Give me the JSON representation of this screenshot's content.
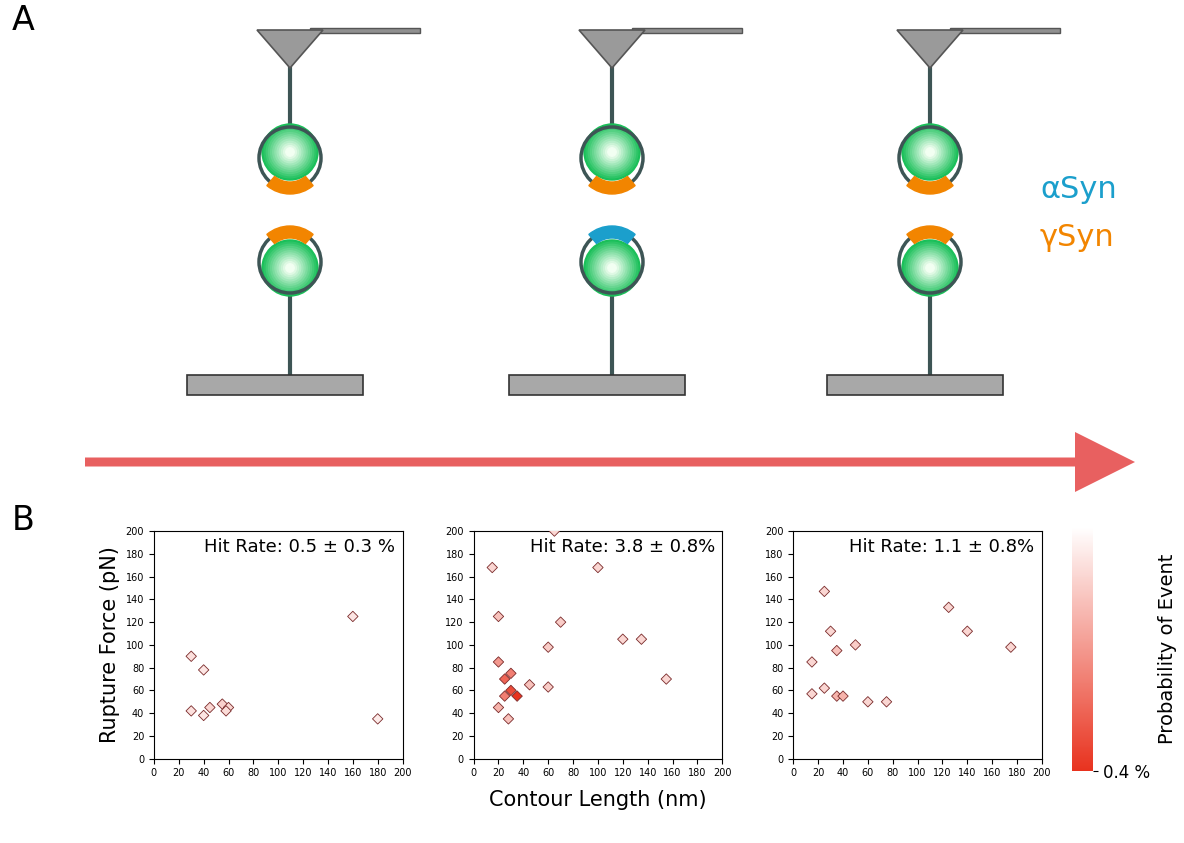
{
  "chart_data": [
    {
      "type": "scatter",
      "title": "Hit Rate: 0.5 ± 0.3 %",
      "y_label": "Rupture Force (pN)",
      "x": [
        30,
        40,
        30,
        45,
        40,
        55,
        60,
        58,
        160,
        180
      ],
      "values": [
        90,
        78,
        42,
        45,
        38,
        48,
        45,
        42,
        125,
        35
      ],
      "probability": [
        0.06,
        0.05,
        0.06,
        0.08,
        0.05,
        0.09,
        0.08,
        0.07,
        0.05,
        0.04
      ],
      "marker": "diamond",
      "xlim": [
        0,
        200
      ],
      "ylim": [
        0,
        200
      ],
      "xticks": [
        0,
        20,
        40,
        60,
        80,
        100,
        120,
        140,
        160,
        180,
        200
      ],
      "yticks": [
        0,
        20,
        40,
        60,
        80,
        100,
        120,
        140,
        160,
        180,
        200
      ]
    },
    {
      "type": "scatter",
      "title": "Hit Rate: 3.8 ± 0.8%",
      "x_label": "Contour Length (nm)",
      "x": [
        15,
        65,
        100,
        20,
        70,
        120,
        135,
        155,
        60,
        60,
        20,
        25,
        25,
        30,
        35,
        28,
        45,
        20,
        30
      ],
      "values": [
        168,
        200,
        168,
        125,
        120,
        105,
        105,
        70,
        98,
        63,
        85,
        70,
        55,
        60,
        55,
        35,
        65,
        45,
        75
      ],
      "probability": [
        0.08,
        0.08,
        0.08,
        0.12,
        0.1,
        0.08,
        0.08,
        0.08,
        0.1,
        0.1,
        0.2,
        0.3,
        0.25,
        0.35,
        0.4,
        0.12,
        0.12,
        0.15,
        0.25
      ],
      "marker": "diamond",
      "xlim": [
        0,
        200
      ],
      "ylim": [
        0,
        200
      ],
      "xticks": [
        0,
        20,
        40,
        60,
        80,
        100,
        120,
        140,
        160,
        180,
        200
      ],
      "yticks": [
        0,
        20,
        40,
        60,
        80,
        100,
        120,
        140,
        160,
        180,
        200
      ]
    },
    {
      "type": "scatter",
      "title": "Hit Rate: 1.1 ± 0.8%",
      "x": [
        25,
        30,
        15,
        35,
        15,
        25,
        35,
        40,
        50,
        60,
        75,
        125,
        140,
        175
      ],
      "values": [
        147,
        112,
        85,
        95,
        57,
        62,
        55,
        55,
        100,
        50,
        50,
        133,
        112,
        98
      ],
      "probability": [
        0.08,
        0.08,
        0.08,
        0.12,
        0.08,
        0.08,
        0.15,
        0.15,
        0.1,
        0.08,
        0.08,
        0.08,
        0.08,
        0.08
      ],
      "marker": "diamond",
      "xlim": [
        0,
        200
      ],
      "ylim": [
        0,
        200
      ],
      "xticks": [
        0,
        20,
        40,
        60,
        80,
        100,
        120,
        140,
        160,
        180,
        200
      ],
      "yticks": [
        0,
        20,
        40,
        60,
        80,
        100,
        120,
        140,
        160,
        180,
        200
      ]
    }
  ],
  "colorbar": {
    "label": "Probability of Event",
    "range": [
      0,
      0.4
    ],
    "ticks": [
      {
        "value": 0.4,
        "label": "0.4 %"
      }
    ],
    "color": "#e8321e"
  },
  "diagram": {
    "panel_labels": [
      "A",
      "B"
    ],
    "proteins": [
      {
        "name": "αSyn",
        "color": "#1b9fcc"
      },
      {
        "name": "γSyn",
        "color": "#f28500"
      }
    ],
    "pairs": [
      {
        "tip": "γSyn",
        "surface": "γSyn"
      },
      {
        "tip": "γSyn",
        "surface": "αSyn"
      },
      {
        "tip": "γSyn",
        "surface": "γSyn"
      }
    ]
  }
}
